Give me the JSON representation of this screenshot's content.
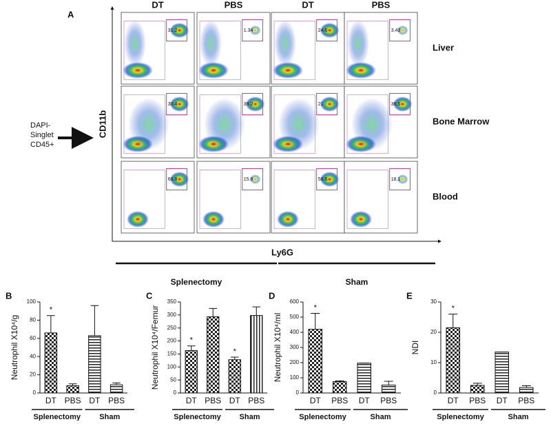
{
  "panel_a": {
    "label": "A",
    "columns": [
      "DT",
      "PBS",
      "DT",
      "PBS"
    ],
    "rows": [
      "Liver",
      "Bone Marrow",
      "Blood"
    ],
    "gates": [
      [
        31.2,
        1.34,
        24.6,
        3.43
      ],
      [
        30.4,
        39.2,
        21,
        36.5
      ],
      [
        68.8,
        15.8,
        58.6,
        18.1
      ]
    ],
    "y_axis": "CD11b",
    "x_axis": "Ly6G",
    "input": [
      "DAPI-",
      "Singlet",
      "CD45+"
    ],
    "groups": [
      "Splenectomy",
      "Sham"
    ]
  },
  "chart_data": [
    {
      "type": "bar",
      "panel": "B",
      "y_label": "Neutrophil X10⁴/g",
      "categories": [
        "DT",
        "PBS",
        "DT",
        "PBS"
      ],
      "groups": [
        "Splenectomy",
        "Sham"
      ],
      "values": [
        66,
        8,
        63,
        9
      ],
      "errors": [
        19,
        2,
        33,
        2
      ],
      "significance": [
        "*",
        null,
        null,
        null
      ],
      "patterns": [
        "checker",
        "checker",
        "hlines",
        "hlines"
      ],
      "ylim": [
        0,
        100
      ],
      "yticks": [
        0,
        20,
        40,
        60,
        80,
        100
      ]
    },
    {
      "type": "bar",
      "panel": "C",
      "y_label": "Neutrophil X10⁴/Femur",
      "categories": [
        "DT",
        "PBS",
        "DT",
        "PBS"
      ],
      "groups": [
        "Splenectomy",
        "Sham"
      ],
      "values": [
        163,
        293,
        128,
        298
      ],
      "errors": [
        18,
        32,
        10,
        33
      ],
      "significance": [
        "*",
        null,
        "*",
        null
      ],
      "patterns": [
        "checker",
        "checker",
        "checker",
        "vlines"
      ],
      "ylim": [
        0,
        350
      ],
      "yticks": [
        0,
        50,
        100,
        150,
        200,
        250,
        300,
        350
      ]
    },
    {
      "type": "bar",
      "panel": "D",
      "y_label": "Neutrophil X10⁴/ml",
      "categories": [
        "DT",
        "PBS",
        "DT",
        "PBS"
      ],
      "groups": [
        "Splenectomy",
        "Sham"
      ],
      "values": [
        420,
        75,
        197,
        52
      ],
      "errors": [
        105,
        5,
        0,
        25
      ],
      "significance": [
        "*",
        null,
        null,
        null
      ],
      "patterns": [
        "checker",
        "checker",
        "hlines",
        "hlines"
      ],
      "ylim": [
        0,
        600
      ],
      "yticks": [
        0,
        100,
        200,
        300,
        400,
        500,
        600
      ]
    },
    {
      "type": "bar",
      "panel": "E",
      "y_label": "NDI",
      "categories": [
        "DT",
        "PBS",
        "DT",
        "PBS"
      ],
      "groups": [
        "Splenectomy",
        "Sham"
      ],
      "values": [
        21.5,
        2.5,
        13.5,
        1.8
      ],
      "errors": [
        4.5,
        0.7,
        0,
        0.6
      ],
      "significance": [
        "*",
        null,
        null,
        null
      ],
      "patterns": [
        "checker",
        "checker",
        "hlines",
        "hlines"
      ],
      "ylim": [
        0,
        30
      ],
      "yticks": [
        0,
        10,
        20,
        30
      ]
    }
  ]
}
